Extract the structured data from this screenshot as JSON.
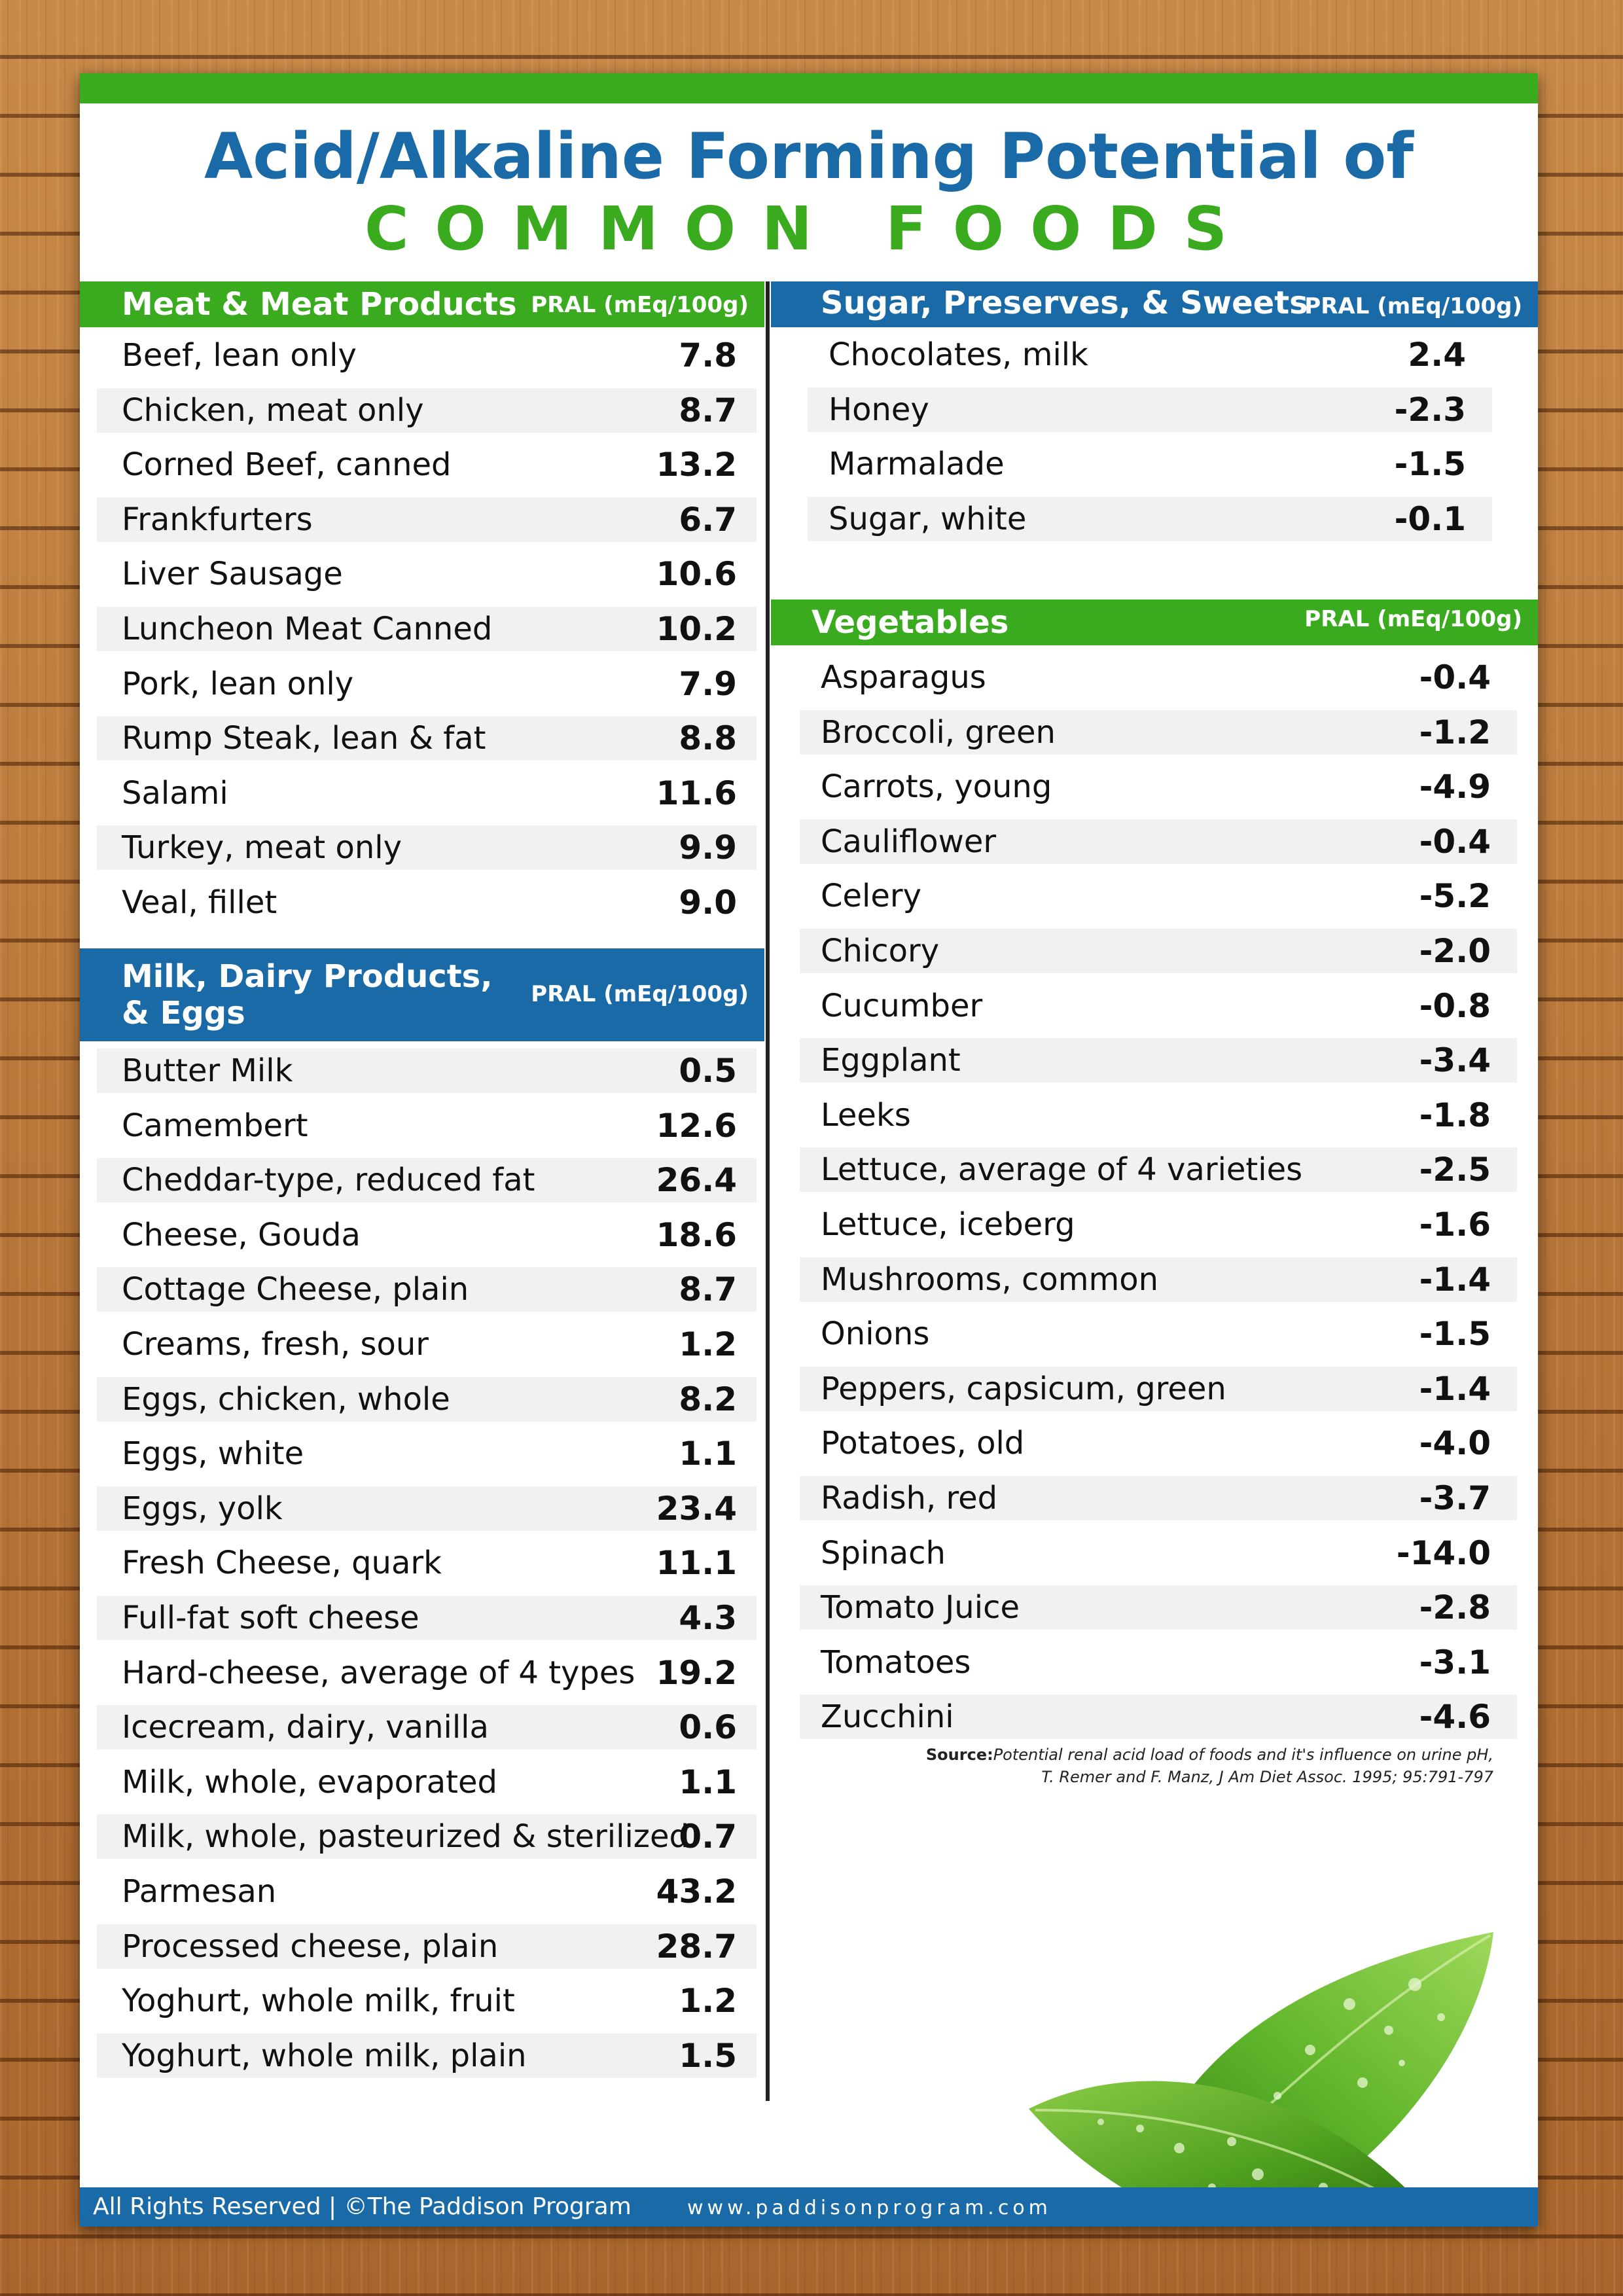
{
  "title": {
    "line1": "Acid/Alkaline Forming Potential of",
    "line2": "COMMON FOODS"
  },
  "sections": {
    "meat": {
      "title": "Meat & Meat Products",
      "unit": "PRAL (mEq/100g)",
      "items": [
        {
          "name": "Beef, lean only",
          "value": "7.8"
        },
        {
          "name": "Chicken, meat only",
          "value": "8.7"
        },
        {
          "name": "Corned Beef, canned",
          "value": "13.2"
        },
        {
          "name": "Frankfurters",
          "value": "6.7"
        },
        {
          "name": "Liver Sausage",
          "value": "10.6"
        },
        {
          "name": "Luncheon Meat Canned",
          "value": "10.2"
        },
        {
          "name": "Pork, lean only",
          "value": "7.9"
        },
        {
          "name": "Rump Steak, lean & fat",
          "value": "8.8"
        },
        {
          "name": "Salami",
          "value": "11.6"
        },
        {
          "name": "Turkey, meat only",
          "value": "9.9"
        },
        {
          "name": "Veal, fillet",
          "value": "9.0"
        }
      ]
    },
    "dairy": {
      "title_line1": "Milk, Dairy Products,",
      "title_line2": "& Eggs",
      "unit": "PRAL (mEq/100g)",
      "items": [
        {
          "name": "Butter Milk",
          "value": "0.5"
        },
        {
          "name": "Camembert",
          "value": "12.6"
        },
        {
          "name": "Cheddar-type, reduced fat",
          "value": "26.4"
        },
        {
          "name": "Cheese, Gouda",
          "value": "18.6"
        },
        {
          "name": "Cottage Cheese, plain",
          "value": "8.7"
        },
        {
          "name": "Creams, fresh, sour",
          "value": "1.2"
        },
        {
          "name": "Eggs, chicken, whole",
          "value": "8.2"
        },
        {
          "name": "Eggs, white",
          "value": "1.1"
        },
        {
          "name": "Eggs, yolk",
          "value": "23.4"
        },
        {
          "name": "Fresh Cheese, quark",
          "value": "11.1"
        },
        {
          "name": "Full-fat soft cheese",
          "value": "4.3"
        },
        {
          "name": "Hard-cheese, average of 4 types",
          "value": "19.2"
        },
        {
          "name": "Icecream, dairy, vanilla",
          "value": "0.6"
        },
        {
          "name": "Milk, whole, evaporated",
          "value": "1.1"
        },
        {
          "name": "Milk, whole, pasteurized & sterilized",
          "value": "0.7"
        },
        {
          "name": "Parmesan",
          "value": "43.2"
        },
        {
          "name": "Processed cheese, plain",
          "value": "28.7"
        },
        {
          "name": "Yoghurt, whole milk, fruit",
          "value": "1.2"
        },
        {
          "name": "Yoghurt, whole milk, plain",
          "value": "1.5"
        }
      ]
    },
    "sugar": {
      "title": "Sugar, Preserves, & Sweets",
      "unit": "PRAL (mEq/100g)",
      "items": [
        {
          "name": "Chocolates, milk",
          "value": "2.4"
        },
        {
          "name": "Honey",
          "value": "-2.3"
        },
        {
          "name": "Marmalade",
          "value": "-1.5"
        },
        {
          "name": "Sugar, white",
          "value": "-0.1"
        }
      ]
    },
    "vegetables": {
      "title": "Vegetables",
      "unit": "PRAL (mEq/100g)",
      "items": [
        {
          "name": "Asparagus",
          "value": "-0.4"
        },
        {
          "name": "Broccoli, green",
          "value": "-1.2"
        },
        {
          "name": "Carrots, young",
          "value": "-4.9"
        },
        {
          "name": "Cauliflower",
          "value": "-0.4"
        },
        {
          "name": "Celery",
          "value": "-5.2"
        },
        {
          "name": "Chicory",
          "value": "-2.0"
        },
        {
          "name": "Cucumber",
          "value": "-0.8"
        },
        {
          "name": "Eggplant",
          "value": "-3.4"
        },
        {
          "name": "Leeks",
          "value": "-1.8"
        },
        {
          "name": "Lettuce, average of 4 varieties",
          "value": "-2.5"
        },
        {
          "name": "Lettuce, iceberg",
          "value": "-1.6"
        },
        {
          "name": "Mushrooms, common",
          "value": "-1.4"
        },
        {
          "name": "Onions",
          "value": "-1.5"
        },
        {
          "name": "Peppers, capsicum, green",
          "value": "-1.4"
        },
        {
          "name": "Potatoes, old",
          "value": "-4.0"
        },
        {
          "name": "Radish, red",
          "value": "-3.7"
        },
        {
          "name": "Spinach",
          "value": "-14.0"
        },
        {
          "name": "Tomato Juice",
          "value": "-2.8"
        },
        {
          "name": "Tomatoes",
          "value": "-3.1"
        },
        {
          "name": "Zucchini",
          "value": "-4.6"
        }
      ]
    }
  },
  "source": {
    "label": "Source:",
    "line1": "Potential renal acid load of foods and it's influence on urine pH,",
    "line2": "T. Remer and F. Manz, J Am Diet Assoc. 1995; 95:791-797"
  },
  "footer": {
    "rights": "All Rights Reserved",
    "copyright": "| ©The Paddison Program",
    "website": "www.paddisonprogram.com"
  },
  "colors": {
    "green": "#3aaa1f",
    "blue": "#1a6aa7",
    "row_shade": "#f1f1f1"
  },
  "icons": [
    "green-leaves-illustration"
  ]
}
